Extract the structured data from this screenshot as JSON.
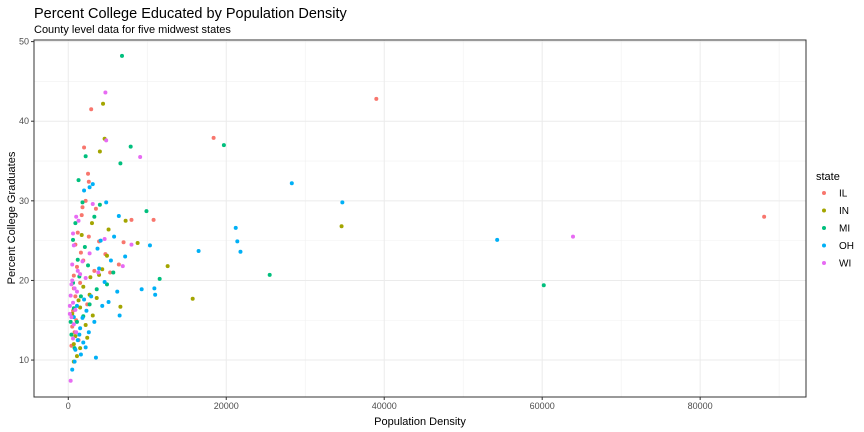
{
  "chart_data": {
    "type": "scatter",
    "title": "Percent College Educated by Population Density",
    "subtitle": "County level data for five midwest states",
    "xlabel": "Population Density",
    "ylabel": "Percent College Graduates",
    "xlim": [
      -4340,
      93400
    ],
    "ylim": [
      5.36,
      50.2
    ],
    "xticks": [
      0,
      20000,
      40000,
      60000,
      80000
    ],
    "xtick_labels": [
      "0",
      "20000",
      "40000",
      "60000",
      "80000"
    ],
    "yticks": [
      10,
      20,
      30,
      40,
      50
    ],
    "ytick_labels": [
      "10",
      "20",
      "30",
      "40",
      "50"
    ],
    "grid": true,
    "legend": {
      "title": "state",
      "placement": "right"
    },
    "series": [
      {
        "name": "IL",
        "color": "#F8766D",
        "points": [
          [
            39000,
            42.8
          ],
          [
            88100,
            28.0
          ],
          [
            18400,
            37.9
          ],
          [
            2900,
            41.5
          ],
          [
            2000,
            36.7
          ],
          [
            2500,
            33.4
          ],
          [
            2600,
            32.4
          ],
          [
            2200,
            30.0
          ],
          [
            1800,
            29.2
          ],
          [
            3500,
            29.0
          ],
          [
            8000,
            27.6
          ],
          [
            10800,
            27.6
          ],
          [
            7000,
            24.8
          ],
          [
            3900,
            24.9
          ],
          [
            1700,
            28.2
          ],
          [
            1200,
            26.0
          ],
          [
            900,
            24.5
          ],
          [
            2600,
            25.5
          ],
          [
            4700,
            23.3
          ],
          [
            6400,
            22.0
          ],
          [
            5300,
            21.0
          ],
          [
            1100,
            21.7
          ],
          [
            700,
            20.6
          ],
          [
            1500,
            19.7
          ],
          [
            900,
            18.0
          ],
          [
            2400,
            17.0
          ],
          [
            600,
            16.2
          ],
          [
            1000,
            15.0
          ],
          [
            500,
            14.2
          ],
          [
            800,
            13.5
          ],
          [
            1300,
            12.5
          ],
          [
            400,
            11.8
          ],
          [
            1900,
            22.5
          ],
          [
            3300,
            21.2
          ],
          [
            700,
            19.0
          ],
          [
            1600,
            23.5
          ]
        ]
      },
      {
        "name": "IN",
        "color": "#A3A500",
        "points": [
          [
            4400,
            42.2
          ],
          [
            4600,
            37.8
          ],
          [
            4000,
            36.2
          ],
          [
            34600,
            26.8
          ],
          [
            7260,
            27.5
          ],
          [
            8780,
            24.7
          ],
          [
            12580,
            21.8
          ],
          [
            15750,
            17.7
          ],
          [
            3000,
            27.2
          ],
          [
            1700,
            25.7
          ],
          [
            5100,
            26.4
          ],
          [
            4300,
            21.4
          ],
          [
            6600,
            16.7
          ],
          [
            2700,
            18.2
          ],
          [
            3100,
            15.6
          ],
          [
            1900,
            19.2
          ],
          [
            1300,
            17.5
          ],
          [
            2200,
            14.4
          ],
          [
            900,
            13.0
          ],
          [
            1500,
            11.5
          ],
          [
            700,
            9.8
          ],
          [
            1100,
            10.5
          ],
          [
            2400,
            12.8
          ],
          [
            3600,
            17.8
          ],
          [
            500,
            15.8
          ],
          [
            2800,
            20.4
          ],
          [
            1500,
            16.6
          ],
          [
            700,
            12.0
          ],
          [
            4900,
            23.1
          ],
          [
            3900,
            20.7
          ]
        ]
      },
      {
        "name": "MI",
        "color": "#00BF7D",
        "points": [
          [
            6800,
            48.2
          ],
          [
            19700,
            37.0
          ],
          [
            7900,
            36.8
          ],
          [
            2200,
            35.6
          ],
          [
            6600,
            34.7
          ],
          [
            1300,
            32.6
          ],
          [
            25500,
            20.7
          ],
          [
            60200,
            19.4
          ],
          [
            9900,
            28.7
          ],
          [
            11570,
            20.2
          ],
          [
            4000,
            29.5
          ],
          [
            1800,
            29.8
          ],
          [
            600,
            25.1
          ],
          [
            900,
            27.2
          ],
          [
            3300,
            28.0
          ],
          [
            5700,
            21.0
          ],
          [
            4900,
            19.5
          ],
          [
            2500,
            21.9
          ],
          [
            1600,
            18.0
          ],
          [
            700,
            16.5
          ],
          [
            1100,
            14.8
          ],
          [
            400,
            13.2
          ],
          [
            2700,
            17.0
          ],
          [
            1900,
            15.5
          ],
          [
            800,
            11.5
          ],
          [
            1400,
            20.5
          ],
          [
            3600,
            18.9
          ],
          [
            600,
            19.7
          ],
          [
            2100,
            24.2
          ],
          [
            1200,
            22.6
          ],
          [
            300,
            14.8
          ]
        ]
      },
      {
        "name": "OH",
        "color": "#00B0F6",
        "points": [
          [
            28300,
            32.2
          ],
          [
            34700,
            29.8
          ],
          [
            54300,
            25.1
          ],
          [
            21200,
            26.6
          ],
          [
            21400,
            24.9
          ],
          [
            21800,
            23.6
          ],
          [
            16500,
            23.7
          ],
          [
            10340,
            24.4
          ],
          [
            9290,
            18.9
          ],
          [
            10900,
            19.0
          ],
          [
            11000,
            18.2
          ],
          [
            2700,
            31.7
          ],
          [
            2000,
            31.3
          ],
          [
            3100,
            32.1
          ],
          [
            4800,
            29.8
          ],
          [
            6400,
            28.1
          ],
          [
            7200,
            23.0
          ],
          [
            5400,
            22.5
          ],
          [
            6200,
            18.6
          ],
          [
            5100,
            17.3
          ],
          [
            6500,
            15.6
          ],
          [
            4600,
            19.8
          ],
          [
            3900,
            21.5
          ],
          [
            2900,
            18.0
          ],
          [
            2300,
            16.2
          ],
          [
            1800,
            15.3
          ],
          [
            1500,
            14.0
          ],
          [
            2600,
            13.5
          ],
          [
            1200,
            12.5
          ],
          [
            900,
            11.3
          ],
          [
            1600,
            10.7
          ],
          [
            800,
            9.8
          ],
          [
            500,
            8.8
          ],
          [
            1900,
            12.2
          ],
          [
            3300,
            14.8
          ],
          [
            4300,
            16.8
          ],
          [
            2000,
            17.6
          ],
          [
            1100,
            16.8
          ],
          [
            3500,
            10.3
          ],
          [
            2200,
            11.6
          ],
          [
            1400,
            13.2
          ],
          [
            700,
            15.4
          ],
          [
            3700,
            24.0
          ],
          [
            5800,
            25.5
          ],
          [
            4100,
            25.0
          ]
        ]
      },
      {
        "name": "WI",
        "color": "#E76BF3",
        "points": [
          [
            4700,
            43.6
          ],
          [
            4800,
            37.6
          ],
          [
            9100,
            35.5
          ],
          [
            63900,
            25.5
          ],
          [
            3100,
            29.6
          ],
          [
            600,
            25.9
          ],
          [
            1000,
            28.0
          ],
          [
            4600,
            25.2
          ],
          [
            8000,
            24.5
          ],
          [
            6900,
            21.8
          ],
          [
            3800,
            21.0
          ],
          [
            1800,
            22.4
          ],
          [
            1200,
            21.2
          ],
          [
            500,
            20.0
          ],
          [
            800,
            19.0
          ],
          [
            300,
            18.1
          ],
          [
            600,
            17.2
          ],
          [
            900,
            16.3
          ],
          [
            400,
            15.4
          ],
          [
            700,
            14.5
          ],
          [
            1100,
            18.6
          ],
          [
            1500,
            20.8
          ],
          [
            200,
            16.8
          ],
          [
            400,
            19.5
          ],
          [
            2200,
            20.3
          ],
          [
            500,
            22.0
          ],
          [
            300,
            7.4
          ],
          [
            2700,
            23.4
          ],
          [
            1300,
            27.5
          ],
          [
            700,
            24.4
          ],
          [
            200,
            15.8
          ],
          [
            1000,
            13.5
          ],
          [
            600,
            12.7
          ]
        ]
      }
    ]
  }
}
